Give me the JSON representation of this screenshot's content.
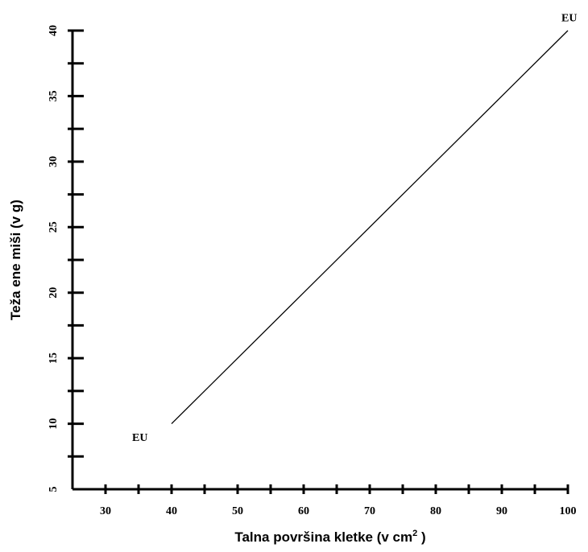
{
  "chart_data": {
    "type": "line",
    "xlabel": "Talna površina kletke (v cm",
    "xlabel_sup": "2",
    "xlabel_end": " )",
    "ylabel": "Teža ene miši (v g)",
    "xlim": [
      25,
      100
    ],
    "ylim": [
      5,
      40
    ],
    "x_major_ticks": [
      30,
      40,
      50,
      60,
      70,
      80,
      90,
      100
    ],
    "x_minor_ticks": [
      35,
      45,
      55,
      65,
      75,
      85,
      95
    ],
    "y_major_ticks": [
      5,
      10,
      15,
      20,
      25,
      30,
      35,
      40
    ],
    "y_minor_ticks": [
      7.5,
      12.5,
      17.5,
      22.5,
      27.5,
      32.5,
      37.5
    ],
    "grid": false,
    "series": [
      {
        "x": [
          40,
          100
        ],
        "y": [
          10,
          40
        ]
      }
    ],
    "annotations": [
      {
        "text": "EU",
        "x": 35,
        "y": 9
      },
      {
        "text": "EU",
        "x": 100,
        "y": 41
      }
    ]
  }
}
